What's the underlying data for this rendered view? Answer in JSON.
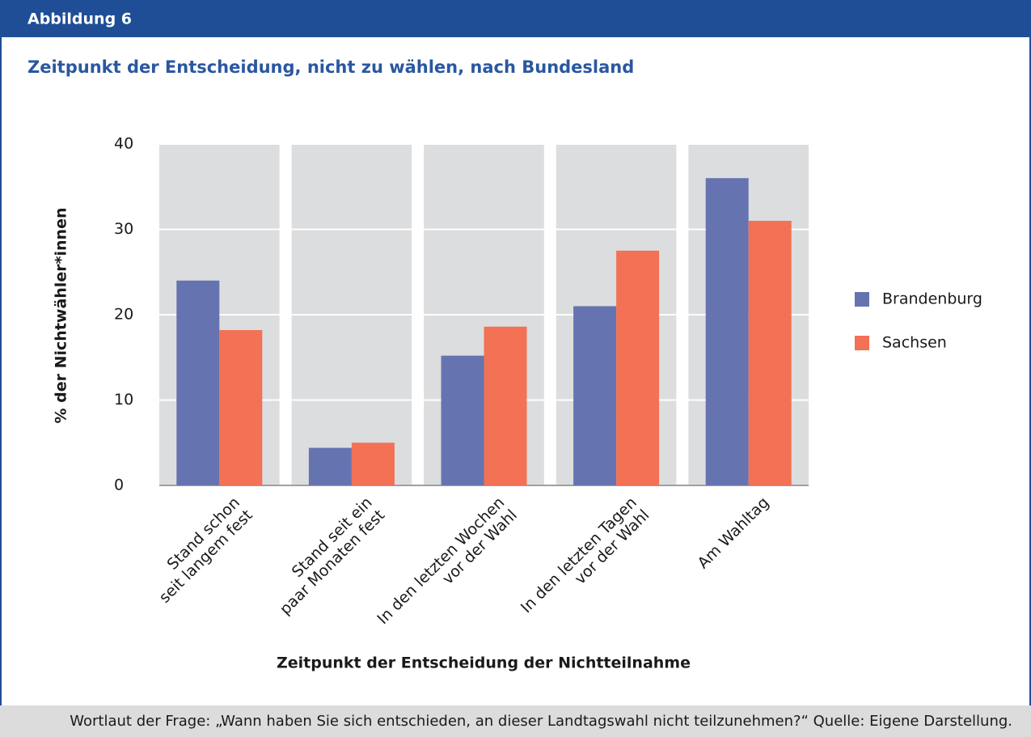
{
  "header": "Abbildung 6",
  "chart_data": {
    "type": "bar",
    "title": "Zeitpunkt der Entscheidung, nicht zu wählen, nach Bundesland",
    "ylabel": "% der Nichtwähler*innen",
    "xlabel": "Zeitpunkt der Entscheidung der Nichtteilnahme",
    "categories": [
      [
        "Stand schon",
        "seit langem fest"
      ],
      [
        "Stand seit ein",
        "paar Monaten fest"
      ],
      [
        "In den letzten Wochen",
        "vor der Wahl"
      ],
      [
        "In den letzten Tagen",
        "vor der Wahl"
      ],
      [
        "Am Wahltag"
      ]
    ],
    "series": [
      {
        "name": "Brandenburg",
        "color": "#6574b0",
        "values": [
          24,
          4.4,
          15.2,
          21,
          36
        ]
      },
      {
        "name": "Sachsen",
        "color": "#f37155",
        "values": [
          18.2,
          5,
          18.6,
          27.5,
          31
        ]
      }
    ],
    "ylim": [
      0,
      40
    ],
    "yticks": [
      0,
      10,
      20,
      30,
      40
    ],
    "grid": true,
    "legend": "right"
  },
  "note": "Wortlaut der Frage: „Wann haben Sie sich entschieden, an dieser Landtagswahl nicht teilzunehmen?“ Quelle: Eigene Darstellung."
}
